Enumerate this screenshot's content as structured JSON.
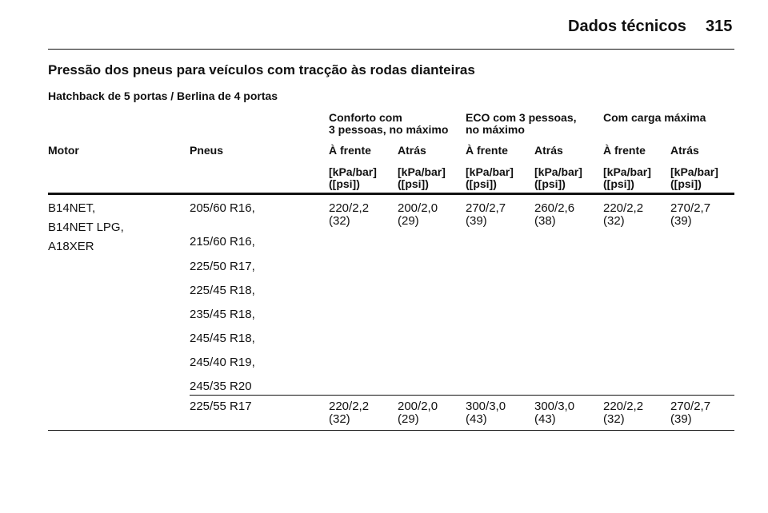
{
  "header": {
    "title": "Dados técnicos",
    "page": "315"
  },
  "section_title": "Pressão dos pneus para veículos com tracção às rodas dianteiras",
  "subtitle": "Hatchback de 5 portas / Berlina de 4 portas",
  "table": {
    "groups": [
      [
        "Conforto com",
        "3 pessoas, no máximo"
      ],
      [
        "ECO com 3 pessoas,",
        "no máximo"
      ],
      [
        "Com carga máxima"
      ]
    ],
    "columns": [
      "Motor",
      "Pneus",
      "À frente",
      "Atrás",
      "À frente",
      "Atrás",
      "À frente",
      "Atrás"
    ],
    "units": [
      [
        "[kPa/bar]",
        "([psi])"
      ],
      [
        "[kPa/bar]",
        "([psi])"
      ],
      [
        "[kPa/bar]",
        "([psi])"
      ],
      [
        "[kPa/bar]",
        "([psi])"
      ],
      [
        "[kPa/bar]",
        "([psi])"
      ],
      [
        "[kPa/bar]",
        "([psi])"
      ]
    ],
    "rows": [
      {
        "motor": [
          "B14NET,",
          "B14NET LPG,",
          "A18XER"
        ],
        "tyres": [
          "205/60 R16,",
          "215/60 R16,",
          "225/50 R17,",
          "225/45 R18,",
          "235/45 R18,",
          "245/45 R18,",
          "245/40 R19,",
          "245/35 R20"
        ],
        "values": [
          [
            "220/2,2",
            "(32)"
          ],
          [
            "200/2,0",
            "(29)"
          ],
          [
            "270/2,7",
            "(39)"
          ],
          [
            "260/2,6",
            "(38)"
          ],
          [
            "220/2,2",
            "(32)"
          ],
          [
            "270/2,7",
            "(39)"
          ]
        ]
      },
      {
        "motor": [],
        "tyres": [
          "225/55 R17"
        ],
        "values": [
          [
            "220/2,2",
            "(32)"
          ],
          [
            "200/2,0",
            "(29)"
          ],
          [
            "300/3,0",
            "(43)"
          ],
          [
            "300/3,0",
            "(43)"
          ],
          [
            "220/2,2",
            "(32)"
          ],
          [
            "270/2,7",
            "(39)"
          ]
        ]
      }
    ]
  }
}
